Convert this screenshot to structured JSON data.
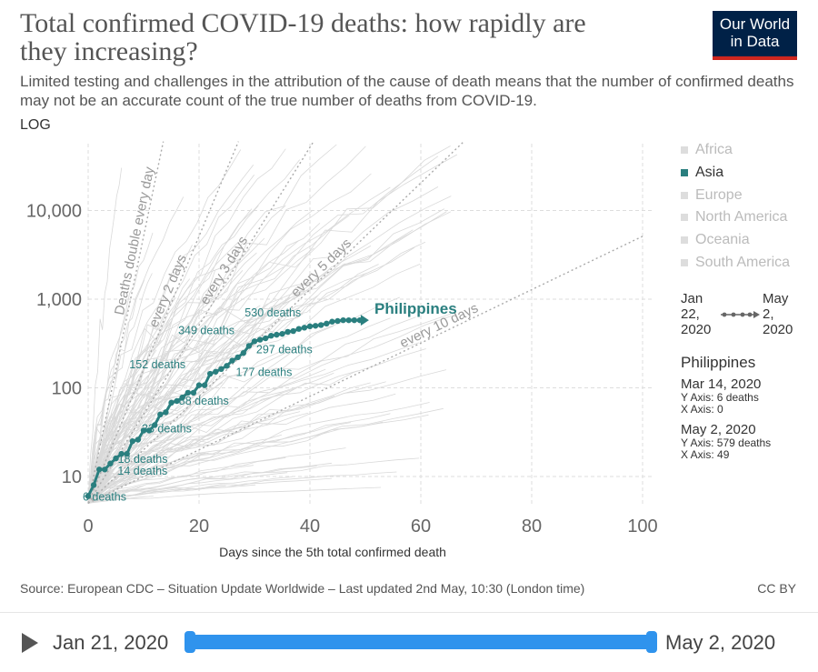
{
  "header": {
    "title": "Total confirmed COVID-19 deaths: how rapidly are they increasing?",
    "subtitle": "Limited testing and challenges in the attribution of the cause of death means that the number of confirmed deaths may not be an accurate count of the true number of deaths from COVID-19.",
    "logo_line1": "Our World",
    "logo_line2": "in Data"
  },
  "controls": {
    "scale": "LOG"
  },
  "chart_data": {
    "type": "line",
    "yscale": "log",
    "xlim": [
      0,
      100
    ],
    "ylim": [
      5,
      60000
    ],
    "xticks": [
      0,
      20,
      40,
      60,
      80,
      100
    ],
    "yticks": [
      10,
      100,
      1000,
      10000
    ],
    "ytick_labels": [
      "10",
      "100",
      "1,000",
      "10,000"
    ],
    "xlabel": "Days since the 5th total confirmed death",
    "ylabel": "",
    "reference_lines": [
      {
        "label": "Deaths double every day",
        "doubling_days": 1
      },
      {
        "label": "every 2 days",
        "doubling_days": 2
      },
      {
        "label": "every 3 days",
        "doubling_days": 3
      },
      {
        "label": "every 5 days",
        "doubling_days": 5
      },
      {
        "label": "every 10 days",
        "doubling_days": 10
      }
    ],
    "series": [
      {
        "name": "Philippines",
        "color": "#2a7f7f",
        "x": [
          0,
          1,
          2,
          3,
          4,
          5,
          6,
          7,
          8,
          9,
          10,
          11,
          12,
          13,
          14,
          15,
          16,
          17,
          18,
          19,
          20,
          21,
          22,
          23,
          24,
          25,
          26,
          27,
          28,
          29,
          30,
          31,
          32,
          33,
          34,
          35,
          36,
          37,
          38,
          39,
          40,
          41,
          42,
          43,
          44,
          45,
          46,
          47,
          48,
          49
        ],
        "values": [
          6,
          8,
          12,
          12,
          14,
          16,
          18,
          18,
          25,
          26,
          33,
          33,
          38,
          50,
          53,
          68,
          71,
          78,
          88,
          88,
          107,
          107,
          144,
          152,
          163,
          177,
          203,
          221,
          247,
          297,
          335,
          349,
          362,
          387,
          397,
          406,
          428,
          437,
          462,
          477,
          494,
          501,
          511,
          530,
          558,
          568,
          579,
          579,
          579,
          579
        ]
      }
    ],
    "point_labels": [
      {
        "series": "Philippines",
        "text": "6 deaths",
        "x": 0,
        "y": 6
      },
      {
        "series": "Philippines",
        "text": "14 deaths",
        "x": 4,
        "y": 14
      },
      {
        "series": "Philippines",
        "text": "18 deaths",
        "x": 6,
        "y": 18
      },
      {
        "series": "Philippines",
        "text": "33 deaths",
        "x": 10,
        "y": 33
      },
      {
        "series": "Philippines",
        "text": "88 deaths",
        "x": 18,
        "y": 88
      },
      {
        "series": "Philippines",
        "text": "152 deaths",
        "x": 23,
        "y": 152
      },
      {
        "series": "Philippines",
        "text": "177 deaths",
        "x": 25,
        "y": 177
      },
      {
        "series": "Philippines",
        "text": "297 deaths",
        "x": 29,
        "y": 297
      },
      {
        "series": "Philippines",
        "text": "349 deaths",
        "x": 31,
        "y": 349
      },
      {
        "series": "Philippines",
        "text": "530 deaths",
        "x": 43,
        "y": 530
      }
    ],
    "series_label": "Philippines",
    "background_series_count": 120
  },
  "legend": {
    "items": [
      {
        "label": "Africa",
        "active": false
      },
      {
        "label": "Asia",
        "active": true
      },
      {
        "label": "Europe",
        "active": false
      },
      {
        "label": "North America",
        "active": false
      },
      {
        "label": "Oceania",
        "active": false
      },
      {
        "label": "South America",
        "active": false
      }
    ]
  },
  "range": {
    "start_line1": "Jan",
    "start_line2": "22,",
    "start_line3": "2020",
    "end_line1": "May",
    "end_line2": "2,",
    "end_line3": "2020"
  },
  "tooltip": {
    "name": "Philippines",
    "start_date": "Mar 14, 2020",
    "start_y": "Y Axis: 6 deaths",
    "start_x": "X Axis: 0",
    "end_date": "May 2, 2020",
    "end_y": "Y Axis: 579 deaths",
    "end_x": "X Axis: 49"
  },
  "footer": {
    "source": "Source: European CDC – Situation Update Worldwide – Last updated 2nd May, 10:30 (London time)",
    "license": "CC BY"
  },
  "timeline": {
    "start_label": "Jan 21, 2020",
    "end_label": "May 2, 2020"
  },
  "colors": {
    "accent": "#2a7f7f",
    "slider": "#2f93ed",
    "brand": "#002147",
    "brand_bar": "#ce261e"
  }
}
